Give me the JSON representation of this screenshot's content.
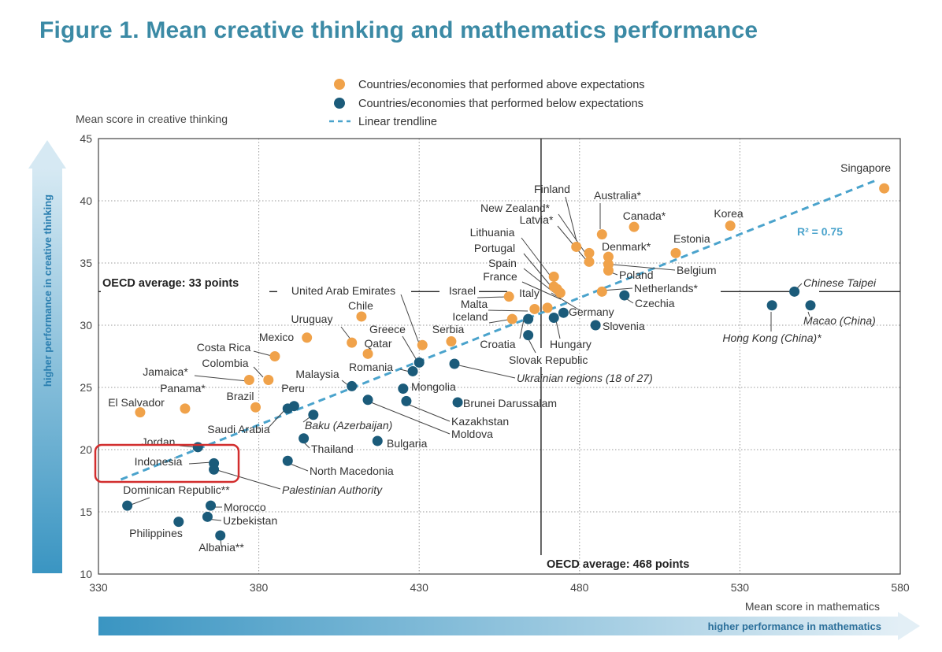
{
  "title": "Figure 1. Mean creative thinking and mathematics performance",
  "chart_data": {
    "type": "scatter",
    "xlabel": "Mean score in mathematics",
    "ylabel": "Mean score in creative thinking",
    "x_arrow_label": "higher performance in mathematics",
    "y_arrow_label": "higher performance in creative thinking",
    "xlim": [
      330,
      580
    ],
    "ylim": [
      10,
      45
    ],
    "x_ticks": [
      "330",
      "380",
      "430",
      "480",
      "530",
      "580"
    ],
    "y_ticks": [
      "10",
      "15",
      "20",
      "25",
      "30",
      "35",
      "40",
      "45"
    ],
    "grid": true,
    "legend": {
      "position": "top-center",
      "above": "Countries/economies that performed above expectations",
      "below": "Countries/economies that performed below expectations",
      "trend": "Linear trendline"
    },
    "colors": {
      "above": "#f0a24a",
      "below": "#1b5b7a",
      "trend": "#4aa3cc",
      "title": "#3b8aa5",
      "highlight": "#d22e2e"
    },
    "oecd_avg_creative": {
      "value": 32.7,
      "label": "OECD average: 33 points"
    },
    "oecd_avg_math": {
      "value": 468,
      "label": "OECD average: 468 points"
    },
    "trendline": {
      "start": [
        337,
        17.6
      ],
      "end": [
        572,
        41.6
      ],
      "label": "R² = 0.75"
    },
    "highlight_box": [
      "Indonesia",
      "Palestinian Authority"
    ],
    "points": [
      {
        "name": "Singapore",
        "x": 575,
        "y": 41,
        "group": "above"
      },
      {
        "name": "Korea",
        "x": 527,
        "y": 38,
        "group": "above"
      },
      {
        "name": "Canada*",
        "x": 497,
        "y": 37.9,
        "group": "above"
      },
      {
        "name": "Australia*",
        "x": 487,
        "y": 37.3,
        "group": "above"
      },
      {
        "name": "Finland",
        "x": 479,
        "y": 36.3,
        "group": "above"
      },
      {
        "name": "Estonia",
        "x": 510,
        "y": 35.8,
        "group": "above"
      },
      {
        "name": "New Zealand*",
        "x": 483,
        "y": 35.8,
        "group": "above"
      },
      {
        "name": "Denmark*",
        "x": 489,
        "y": 35.5,
        "group": "above"
      },
      {
        "name": "Latvia*",
        "x": 483,
        "y": 35.1,
        "group": "above"
      },
      {
        "name": "Belgium",
        "x": 489,
        "y": 34.9,
        "group": "above"
      },
      {
        "name": "Poland",
        "x": 489,
        "y": 34.4,
        "group": "above"
      },
      {
        "name": "Lithuania",
        "x": 472,
        "y": 33.9,
        "group": "above"
      },
      {
        "name": "Portugal",
        "x": 472,
        "y": 33.1,
        "group": "above"
      },
      {
        "name": "Spain",
        "x": 473,
        "y": 32.9,
        "group": "above"
      },
      {
        "name": "Netherlands*",
        "x": 487,
        "y": 32.7,
        "group": "above"
      },
      {
        "name": "France",
        "x": 474,
        "y": 32.6,
        "group": "above"
      },
      {
        "name": "Israel",
        "x": 458,
        "y": 32.3,
        "group": "above"
      },
      {
        "name": "Italy",
        "x": 470,
        "y": 31.4,
        "group": "above"
      },
      {
        "name": "Malta",
        "x": 466,
        "y": 31.3,
        "group": "above"
      },
      {
        "name": "Iceland",
        "x": 459,
        "y": 30.5,
        "group": "above"
      },
      {
        "name": "Chile",
        "x": 412,
        "y": 30.7,
        "group": "above"
      },
      {
        "name": "Uruguay",
        "x": 409,
        "y": 28.6,
        "group": "above"
      },
      {
        "name": "Mexico",
        "x": 395,
        "y": 29,
        "group": "above"
      },
      {
        "name": "United Arab Emirates",
        "x": 431,
        "y": 28.4,
        "group": "above"
      },
      {
        "name": "Serbia",
        "x": 440,
        "y": 28.7,
        "group": "above"
      },
      {
        "name": "Qatar",
        "x": 414,
        "y": 27.7,
        "group": "above"
      },
      {
        "name": "Costa Rica",
        "x": 385,
        "y": 27.5,
        "group": "above"
      },
      {
        "name": "Colombia",
        "x": 383,
        "y": 25.6,
        "group": "above"
      },
      {
        "name": "Jamaica*",
        "x": 377,
        "y": 25.6,
        "group": "above"
      },
      {
        "name": "Brazil",
        "x": 379,
        "y": 23.4,
        "group": "above"
      },
      {
        "name": "Panama*",
        "x": 357,
        "y": 23.3,
        "group": "above"
      },
      {
        "name": "El Salvador",
        "x": 343,
        "y": 23,
        "group": "above"
      },
      {
        "name": "Chinese Taipei",
        "x": 547,
        "y": 32.7,
        "group": "below",
        "italic": true
      },
      {
        "name": "Macao (China)",
        "x": 552,
        "y": 31.6,
        "group": "below",
        "italic": true
      },
      {
        "name": "Hong Kong (China)*",
        "x": 540,
        "y": 31.6,
        "group": "below",
        "italic": true
      },
      {
        "name": "Czechia",
        "x": 494,
        "y": 32.4,
        "group": "below"
      },
      {
        "name": "Germany",
        "x": 475,
        "y": 31,
        "group": "below"
      },
      {
        "name": "Slovenia",
        "x": 485,
        "y": 30,
        "group": "below"
      },
      {
        "name": "Croatia",
        "x": 464,
        "y": 30.5,
        "group": "below"
      },
      {
        "name": "Hungary",
        "x": 472,
        "y": 30.6,
        "group": "below"
      },
      {
        "name": "Slovak Republic",
        "x": 464,
        "y": 29.2,
        "group": "below"
      },
      {
        "name": "Greece",
        "x": 430,
        "y": 27,
        "group": "below"
      },
      {
        "name": "Ukrainian regions (18 of 27)",
        "x": 441,
        "y": 26.9,
        "group": "below",
        "italic": true
      },
      {
        "name": "Romania",
        "x": 428,
        "y": 26.3,
        "group": "below"
      },
      {
        "name": "Mongolia",
        "x": 425,
        "y": 24.9,
        "group": "below"
      },
      {
        "name": "Malaysia",
        "x": 409,
        "y": 25.1,
        "group": "below"
      },
      {
        "name": "Brunei Darussalam",
        "x": 442,
        "y": 23.8,
        "group": "below"
      },
      {
        "name": "Kazakhstan",
        "x": 426,
        "y": 23.9,
        "group": "below"
      },
      {
        "name": "Moldova",
        "x": 414,
        "y": 24,
        "group": "below"
      },
      {
        "name": "Peru",
        "x": 391,
        "y": 23.5,
        "group": "below"
      },
      {
        "name": "Saudi Arabia",
        "x": 389,
        "y": 23.3,
        "group": "below"
      },
      {
        "name": "Baku (Azerbaijan)",
        "x": 397,
        "y": 22.8,
        "group": "below",
        "italic": true
      },
      {
        "name": "Thailand",
        "x": 394,
        "y": 20.9,
        "group": "below"
      },
      {
        "name": "Bulgaria",
        "x": 417,
        "y": 20.7,
        "group": "below"
      },
      {
        "name": "Jordan",
        "x": 361,
        "y": 20.2,
        "group": "below"
      },
      {
        "name": "Indonesia",
        "x": 366,
        "y": 18.9,
        "group": "below"
      },
      {
        "name": "Palestinian Authority",
        "x": 366,
        "y": 18.4,
        "group": "below",
        "italic": true
      },
      {
        "name": "North Macedonia",
        "x": 389,
        "y": 19.1,
        "group": "below"
      },
      {
        "name": "Dominican Republic**",
        "x": 339,
        "y": 15.5,
        "group": "below"
      },
      {
        "name": "Morocco",
        "x": 365,
        "y": 15.5,
        "group": "below"
      },
      {
        "name": "Uzbekistan",
        "x": 364,
        "y": 14.6,
        "group": "below"
      },
      {
        "name": "Philippines",
        "x": 355,
        "y": 14.2,
        "group": "below"
      },
      {
        "name": "Albania**",
        "x": 368,
        "y": 13.1,
        "group": "below"
      }
    ]
  }
}
